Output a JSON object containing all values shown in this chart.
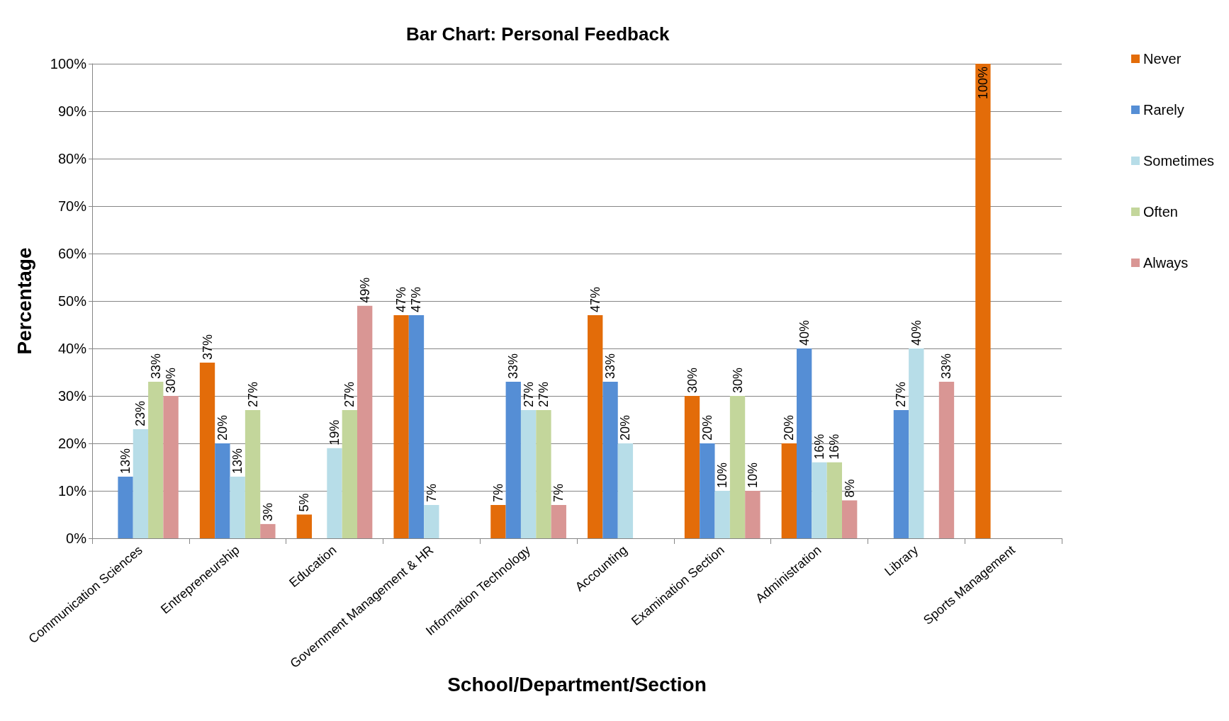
{
  "chart_data": {
    "type": "bar",
    "title": "Bar Chart: Personal Feedback",
    "xlabel": "School/Department/Section",
    "ylabel": "Percentage",
    "categories": [
      "Communication Sciences",
      "Entrepreneurship",
      "Education",
      "Government Management & HR",
      "Information Technology",
      "Accounting",
      "Examination Section",
      "Administration",
      "Library",
      "Sports Management"
    ],
    "series": [
      {
        "name": "Never",
        "color": "#e36c09",
        "values": [
          null,
          37,
          5,
          47,
          7,
          47,
          30,
          20,
          null,
          100
        ],
        "value_labels": [
          null,
          "37%",
          "5%",
          "47%",
          "7%",
          "47%",
          "30%",
          "20%",
          null,
          "100%"
        ]
      },
      {
        "name": "Rarely",
        "color": "#558ed5",
        "values": [
          13,
          20,
          null,
          47,
          33,
          33,
          20,
          40,
          27,
          null
        ],
        "value_labels": [
          "13%",
          "20%",
          null,
          "47%",
          "33%",
          "33%",
          "20%",
          "40%",
          "27%",
          null
        ]
      },
      {
        "name": "Sometimes",
        "color": "#b7dde8",
        "values": [
          23,
          13,
          19,
          7,
          27,
          20,
          10,
          16,
          40,
          null
        ],
        "value_labels": [
          "23%",
          "13%",
          "19%",
          "7%",
          "27%",
          "20%",
          "10%",
          "16%",
          "40%",
          null
        ]
      },
      {
        "name": "Often",
        "color": "#c3d69b",
        "values": [
          33,
          27,
          27,
          null,
          27,
          null,
          30,
          16,
          null,
          null
        ],
        "value_labels": [
          "33%",
          "27%",
          "27%",
          null,
          "27%",
          null,
          "30%",
          "16%",
          null,
          null
        ]
      },
      {
        "name": "Always",
        "color": "#d99694",
        "values": [
          30,
          3,
          49,
          null,
          7,
          null,
          10,
          8,
          33,
          null
        ],
        "value_labels": [
          "30%",
          "3%",
          "49%",
          null,
          "7%",
          null,
          "10%",
          "8%",
          "33%",
          null
        ]
      }
    ],
    "ylim": [
      0,
      100
    ],
    "yticks": [
      {
        "value": 0,
        "label": "0%"
      },
      {
        "value": 10,
        "label": "10%"
      },
      {
        "value": 20,
        "label": "20%"
      },
      {
        "value": 30,
        "label": "30%"
      },
      {
        "value": 40,
        "label": "40%"
      },
      {
        "value": 50,
        "label": "50%"
      },
      {
        "value": 60,
        "label": "60%"
      },
      {
        "value": 70,
        "label": "70%"
      },
      {
        "value": 80,
        "label": "80%"
      },
      {
        "value": 90,
        "label": "90%"
      },
      {
        "value": 100,
        "label": "100%"
      }
    ],
    "grid": "y",
    "legend": "right"
  }
}
